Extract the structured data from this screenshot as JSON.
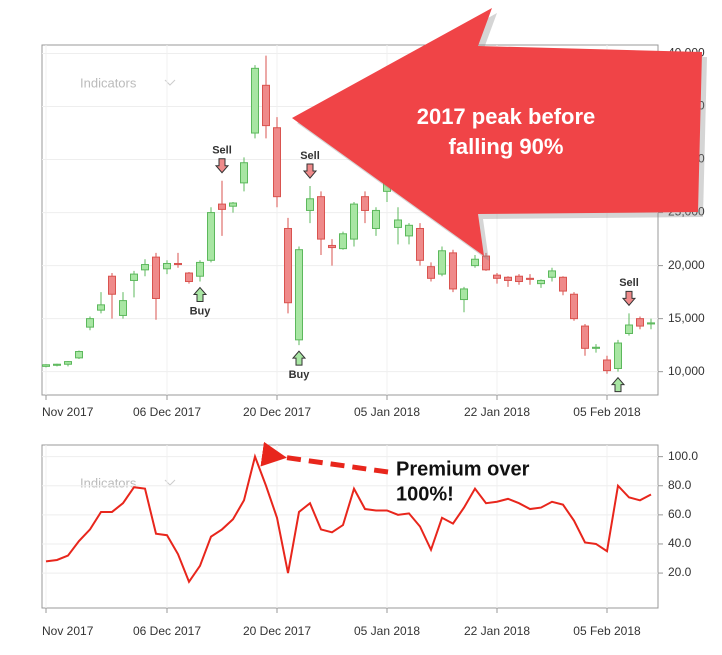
{
  "chart_data": [
    {
      "type": "candlestick",
      "categories": [
        "Nov 2017",
        null,
        null,
        null,
        null,
        null,
        null,
        null,
        null,
        null,
        null,
        "06 Dec 2017",
        null,
        null,
        null,
        null,
        null,
        null,
        null,
        null,
        null,
        "20 Dec 2017",
        null,
        null,
        null,
        null,
        null,
        null,
        null,
        null,
        null,
        "05 Jan 2018",
        null,
        null,
        null,
        null,
        null,
        null,
        null,
        null,
        null,
        "22 Jan 2018",
        null,
        null,
        null,
        null,
        null,
        null,
        null,
        null,
        null,
        "05 Feb 2018",
        null,
        null,
        null,
        null
      ],
      "open": [
        10500,
        10600,
        10700,
        11300,
        14200,
        15800,
        19000,
        15300,
        18600,
        19600,
        20800,
        19700,
        20200,
        19300,
        19000,
        20500,
        25800,
        25600,
        27800,
        32500,
        37000,
        33000,
        23500,
        13000,
        25200,
        26500,
        21900,
        21600,
        22500,
        26500,
        23500,
        27000,
        23600,
        22800,
        23500,
        19900,
        19200,
        21200,
        16800,
        20000,
        20900,
        19100,
        18900,
        19000,
        18800,
        18300,
        18900,
        18900,
        17300,
        14300,
        12200,
        11100,
        10300,
        13600,
        15000,
        14500
      ],
      "high": [
        10700,
        10750,
        11000,
        12000,
        15200,
        17500,
        19300,
        17500,
        19500,
        20600,
        21200,
        20500,
        21200,
        19400,
        20500,
        25500,
        28000,
        26000,
        30200,
        38900,
        39800,
        34000,
        24500,
        21800,
        27500,
        27000,
        22500,
        23200,
        26000,
        27000,
        25500,
        29000,
        25500,
        24000,
        24000,
        20300,
        21800,
        21500,
        18000,
        21000,
        21200,
        19300,
        19000,
        19200,
        19200,
        18700,
        19800,
        19000,
        17500,
        14500,
        12600,
        11500,
        13000,
        15500,
        15200,
        15000
      ],
      "low": [
        10400,
        10500,
        10500,
        11200,
        13900,
        15500,
        15000,
        15000,
        17000,
        19000,
        14900,
        19200,
        19800,
        18300,
        18500,
        20300,
        22800,
        25000,
        27000,
        32000,
        32000,
        25500,
        15500,
        12500,
        24000,
        21000,
        20000,
        21500,
        21800,
        24000,
        22800,
        26000,
        22000,
        22000,
        20000,
        18500,
        19000,
        17500,
        15600,
        19800,
        19500,
        18300,
        18000,
        18200,
        18200,
        17900,
        18500,
        17200,
        14800,
        11500,
        11800,
        9800,
        10000,
        13400,
        14000,
        14000
      ],
      "close": [
        10650,
        10700,
        10950,
        11900,
        15000,
        16300,
        17300,
        16700,
        19200,
        20100,
        16900,
        20200,
        20100,
        18500,
        20300,
        25000,
        25300,
        25900,
        29700,
        38600,
        33200,
        26500,
        16500,
        21500,
        26300,
        22500,
        21700,
        23000,
        25800,
        25200,
        25200,
        28500,
        24300,
        23800,
        20500,
        18800,
        21400,
        17800,
        17800,
        20600,
        19600,
        18800,
        18600,
        18500,
        18700,
        18600,
        19500,
        17600,
        15000,
        12200,
        12300,
        10100,
        12700,
        14400,
        14300,
        14600
      ],
      "up_color": "#a8e6a3",
      "up_edge": "#5cb85c",
      "down_color": "#ef8a8a",
      "down_edge": "#d9534f",
      "ylim": [
        7800,
        40800
      ],
      "yticks": [
        {
          "value": 10000,
          "label": "10,000"
        },
        {
          "value": 15000,
          "label": "15,000"
        },
        {
          "value": 20000,
          "label": "20,000"
        },
        {
          "value": 25000,
          "label": "25,000"
        },
        {
          "value": 30000,
          "label": "30,000"
        },
        {
          "value": 35000,
          "label": "35,000"
        },
        {
          "value": 40000,
          "label": "40,000"
        }
      ],
      "grid": true,
      "watermark": "Indicators",
      "signals": [
        {
          "kind": "buy",
          "label": "Buy",
          "at": 14
        },
        {
          "kind": "sell",
          "label": "Sell",
          "at": 16
        },
        {
          "kind": "buy",
          "label": "Buy",
          "at": 23
        },
        {
          "kind": "sell",
          "label": "Sell",
          "at": 24
        },
        {
          "kind": "buy",
          "at": 52
        },
        {
          "kind": "sell",
          "label": "Sell",
          "at": 53
        }
      ],
      "annotation": [
        "2017 peak before",
        "falling 90%"
      ]
    },
    {
      "type": "line",
      "categories": [
        "Nov 2017",
        null,
        null,
        null,
        null,
        null,
        null,
        null,
        null,
        null,
        null,
        "06 Dec 2017",
        null,
        null,
        null,
        null,
        null,
        null,
        null,
        null,
        null,
        "20 Dec 2017",
        null,
        null,
        null,
        null,
        null,
        null,
        null,
        null,
        null,
        "05 Jan 2018",
        null,
        null,
        null,
        null,
        null,
        null,
        null,
        null,
        null,
        "22 Jan 2018",
        null,
        null,
        null,
        null,
        null,
        null,
        null,
        null,
        null,
        "05 Feb 2018",
        null,
        null,
        null,
        null
      ],
      "values": [
        28,
        29,
        32,
        42,
        50,
        62,
        62,
        68,
        79,
        78,
        47,
        46,
        33,
        14,
        25,
        45,
        50,
        57,
        70,
        100,
        80,
        58,
        20,
        62,
        68,
        50,
        48,
        53,
        78,
        64,
        63,
        63,
        60,
        61,
        52,
        36,
        58,
        54,
        65,
        78,
        68,
        69,
        71,
        68,
        64,
        65,
        69,
        67,
        56,
        41,
        40,
        35,
        80,
        72,
        70,
        74
      ],
      "color": "#e8261c",
      "ylim": [
        -4,
        108
      ],
      "yticks": [
        {
          "value": 20,
          "label": "20.0"
        },
        {
          "value": 40,
          "label": "40.0"
        },
        {
          "value": 60,
          "label": "60.0"
        },
        {
          "value": 80,
          "label": "80.0"
        },
        {
          "value": 100,
          "label": "100.0"
        }
      ],
      "grid": true,
      "watermark": "Indicators",
      "annotation": [
        "Premium over",
        "100%!"
      ]
    }
  ]
}
